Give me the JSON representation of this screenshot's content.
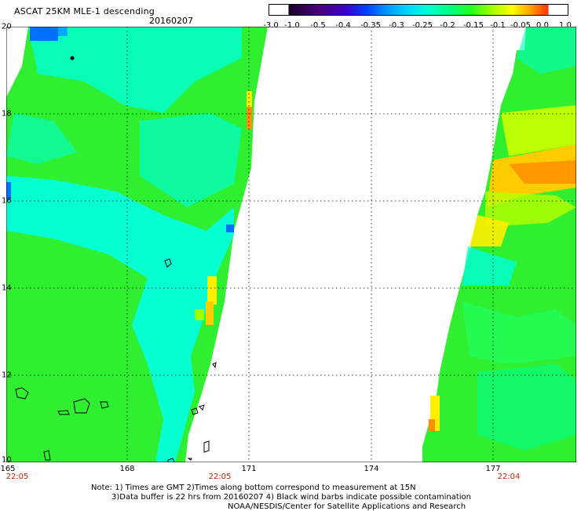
{
  "header": {
    "title": "ASCAT 25KM MLE-1 descending",
    "date": "20160207"
  },
  "colorbar": {
    "labels": [
      "-3.0",
      "-1.0",
      "-0.5",
      "-0.4",
      "-0.35",
      "-0.3",
      "-0.25",
      "-0.2",
      "-0.15",
      "-0.1",
      "-0.05",
      "0.0",
      "1.0"
    ],
    "colors": [
      "#1a0026",
      "#4a0080",
      "#3a00c8",
      "#0040ff",
      "#0098ff",
      "#00d8ff",
      "#00ffd0",
      "#00ff80",
      "#20ff20",
      "#a0ff00",
      "#ffff00",
      "#ffa000",
      "#ff3000"
    ]
  },
  "axes": {
    "lat_labels": [
      "20",
      "18",
      "16",
      "14",
      "12",
      "10"
    ],
    "lon_labels": [
      "165",
      "168",
      "171",
      "174",
      "177"
    ],
    "lat_range": [
      10,
      20
    ],
    "lon_range": [
      165,
      179.75
    ]
  },
  "pass_times": [
    "22:05",
    "22:05",
    "22:04"
  ],
  "footer": {
    "line1": "Note: 1) Times are GMT 2)Times along bottom correspond to measurement at 15N",
    "line2": "3)Data buffer is 22 hrs from 20160207 4) Black wind barbs indicate possible contamination",
    "line3": "NOAA/NESDIS/Center for Satellite Applications and Research"
  },
  "colors": {
    "swath_green": "#30ee30",
    "swath_cyan": "#00ffee",
    "swath_yellow": "#ffee00",
    "swath_orange": "#ff9000",
    "swath_blue": "#0070ff",
    "grid": "#000000",
    "time_label": "#cc2200"
  }
}
